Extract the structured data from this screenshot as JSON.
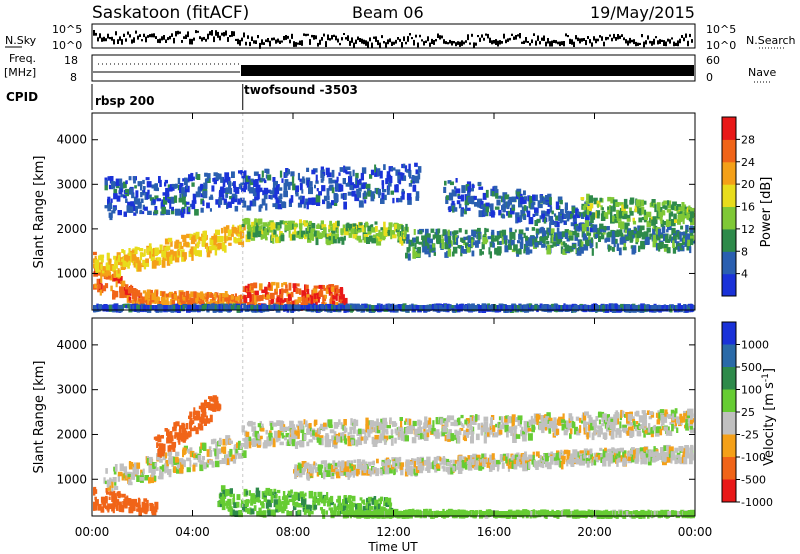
{
  "header": {
    "station": "Saskatoon (fitACF)",
    "beam": "Beam 06",
    "date": "19/May/2015"
  },
  "nsky_panel": {
    "left_label": "N.Sky",
    "right_label": "N.Search",
    "left_ticks": [
      "10^5",
      "10^0"
    ],
    "right_ticks": [
      "10^5",
      "10^0"
    ]
  },
  "freq_panel": {
    "left_label_top": "Freq.",
    "left_label_bottom": "[MHz]",
    "left_ticks": [
      "18",
      "8"
    ],
    "right_label": "Nave",
    "right_ticks": [
      "60",
      "0"
    ]
  },
  "cpid": {
    "label": "CPID",
    "modes": [
      {
        "name": "rbsp 200",
        "start_hour": 0
      },
      {
        "name": "twofsound -3503",
        "start_hour": 6
      }
    ]
  },
  "chart_data": [
    {
      "type": "heatmap",
      "name": "Power",
      "ylabel": "Slant Range [km]",
      "xlabel": "Time UT",
      "x_ticks": [
        "00:00",
        "04:00",
        "08:00",
        "12:00",
        "16:00",
        "20:00",
        "00:00"
      ],
      "xlim_hours": [
        0,
        24
      ],
      "y_ticks": [
        1000,
        2000,
        3000,
        4000
      ],
      "ylim": [
        180,
        4600
      ],
      "colorbar": {
        "label": "Power [dB]",
        "ticks": [
          "4",
          "8",
          "12",
          "16",
          "20",
          "24",
          "28"
        ],
        "colors": [
          "#1a32d8",
          "#2a5fb0",
          "#2e8a4a",
          "#7fc836",
          "#e8dc1c",
          "#f4a018",
          "#f06418",
          "#e81818"
        ]
      },
      "bands": [
        {
          "t": [
            0.0,
            2.0
          ],
          "r0": [
            700,
            300
          ],
          "r1": [
            1500,
            500
          ],
          "power": 26
        },
        {
          "t": [
            2.0,
            6.0
          ],
          "r0": [
            350,
            350
          ],
          "r1": [
            650,
            600
          ],
          "power": 24
        },
        {
          "t": [
            6.0,
            10.0
          ],
          "r0": [
            300,
            300
          ],
          "r1": [
            850,
            750
          ],
          "power": 27
        },
        {
          "t": [
            0.0,
            6.0
          ],
          "r0": [
            950,
            1700
          ],
          "r1": [
            1400,
            2200
          ],
          "power": 20
        },
        {
          "t": [
            6.0,
            12.5
          ],
          "r0": [
            1800,
            1750
          ],
          "r1": [
            2250,
            2150
          ],
          "power": 14
        },
        {
          "t": [
            12.5,
            24.0
          ],
          "r0": [
            1450,
            1600
          ],
          "r1": [
            2000,
            2100
          ],
          "power": 9
        },
        {
          "t": [
            0.0,
            24.0
          ],
          "r0": [
            200,
            200
          ],
          "r1": [
            330,
            330
          ],
          "power": 5
        },
        {
          "t": [
            0.5,
            13.0
          ],
          "r0": [
            2300,
            2700
          ],
          "r1": [
            3200,
            3500
          ],
          "power": 5
        },
        {
          "t": [
            14.0,
            20.0
          ],
          "r0": [
            2500,
            2000
          ],
          "r1": [
            3200,
            2600
          ],
          "power": 6
        },
        {
          "t": [
            19.5,
            24.0
          ],
          "r0": [
            2100,
            2200
          ],
          "r1": [
            2800,
            2600
          ],
          "power": 13
        }
      ]
    },
    {
      "type": "heatmap",
      "name": "Velocity",
      "ylabel": "Slant Range [km]",
      "xlabel": "Time UT",
      "x_ticks": [
        "00:00",
        "04:00",
        "08:00",
        "12:00",
        "16:00",
        "20:00",
        "00:00"
      ],
      "xlim_hours": [
        0,
        24
      ],
      "y_ticks": [
        1000,
        2000,
        3000,
        4000
      ],
      "ylim": [
        180,
        4600
      ],
      "colorbar": {
        "label": "Velocity [m s",
        "label_exponent": "-1",
        "label_close": "]",
        "ticks": [
          "1000",
          "500",
          "100",
          "25",
          "-25",
          "-100",
          "-500",
          "-1000"
        ],
        "colors": [
          "#1a32d8",
          "#2a6aa8",
          "#2e8a4a",
          "#66cc33",
          "#c0c0c0",
          "#f4a018",
          "#f06418",
          "#e81818"
        ]
      },
      "bands": [
        {
          "t": [
            0.0,
            2.5
          ],
          "r0": [
            400,
            300
          ],
          "r1": [
            900,
            500
          ],
          "velocity": -150
        },
        {
          "t": [
            0.5,
            6.0
          ],
          "r0": [
            800,
            1500
          ],
          "r1": [
            1300,
            2100
          ],
          "velocity": 0
        },
        {
          "t": [
            6.0,
            24.0
          ],
          "r0": [
            1800,
            2100
          ],
          "r1": [
            2300,
            2600
          ],
          "velocity": 0
        },
        {
          "t": [
            8.0,
            24.0
          ],
          "r0": [
            1100,
            1500
          ],
          "r1": [
            1400,
            1800
          ],
          "velocity": 0
        },
        {
          "t": [
            5.0,
            12.0
          ],
          "r0": [
            250,
            250
          ],
          "r1": [
            900,
            600
          ],
          "velocity": 80
        },
        {
          "t": [
            10.0,
            24.0
          ],
          "r0": [
            200,
            200
          ],
          "r1": [
            350,
            320
          ],
          "velocity": 60
        },
        {
          "t": [
            2.5,
            5.0
          ],
          "r0": [
            1500,
            2500
          ],
          "r1": [
            2000,
            3000
          ],
          "velocity": -150
        }
      ]
    }
  ]
}
